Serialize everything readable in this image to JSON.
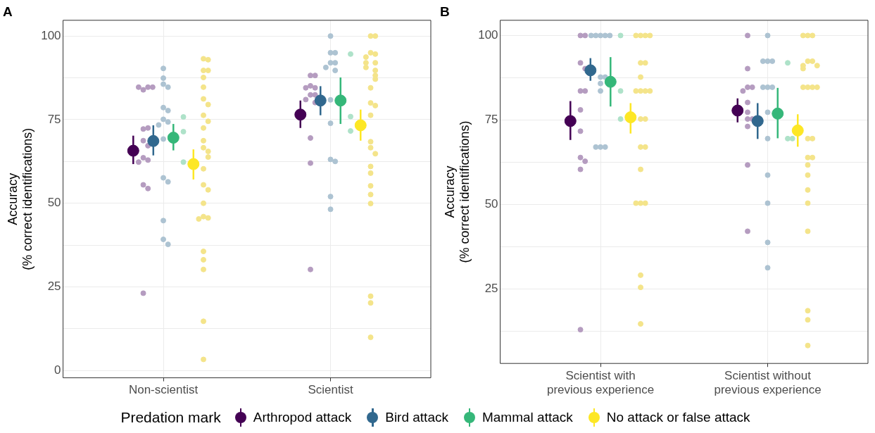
{
  "chart_data": [
    {
      "type": "scatter",
      "title": "A",
      "ylabel": "Accuracy\n(% correct identifications)",
      "categories": [
        "Non-scientist",
        "Scientist"
      ],
      "ylim": [
        -2.2,
        104.7
      ],
      "yticks": [
        0,
        {
          "value": 12.5,
          "label": null
        },
        25,
        {
          "value": 37.5,
          "label": null
        },
        50,
        {
          "value": 62.5,
          "label": null
        },
        75,
        {
          "value": 87.5,
          "label": null
        },
        100
      ],
      "grid": true,
      "marker": "circle",
      "legend": "bottom",
      "legend_title": "Predation mark",
      "series": [
        {
          "name": "Arthropod attack",
          "color": "#440154",
          "values": [
            65.7,
            76.5
          ],
          "errors": [
            [
              61.7,
              70.2
            ],
            [
              72.5,
              80.7
            ]
          ]
        },
        {
          "name": "Bird attack",
          "color": "#31688e",
          "values": [
            68.6,
            80.7
          ],
          "errors": [
            [
              64.3,
              73.3
            ],
            [
              76.3,
              85
            ]
          ]
        },
        {
          "name": "Mammal attack",
          "color": "#35b779",
          "values": [
            69.6,
            80.7
          ],
          "errors": [
            [
              65.8,
              73.7
            ],
            [
              73.7,
              87.6
            ]
          ]
        },
        {
          "name": "No attack or false attack",
          "color": "#fde725",
          "values": [
            61.7,
            73.3
          ],
          "errors": [
            [
              57.1,
              66.1
            ],
            [
              68.7,
              78
            ]
          ]
        },
        {
          "color": "#b59cc0",
          "x": [
            "Non-scientist",
            "Non-scientist",
            "Non-scientist",
            "Non-scientist",
            "Non-scientist",
            "Non-scientist",
            "Non-scientist",
            "Non-scientist",
            "Non-scientist",
            "Non-scientist",
            "Non-scientist",
            "Non-scientist",
            "Non-scientist",
            "Non-scientist",
            "Scientist",
            "Scientist",
            "Scientist",
            "Scientist",
            "Scientist",
            "Scientist",
            "Scientist",
            "Scientist",
            "Scientist",
            "Scientist",
            "Scientist",
            "Scientist"
          ],
          "values": [
            83.9,
            84.7,
            84.7,
            84.7,
            72.2,
            72.5,
            68.7,
            67.2,
            63.6,
            62.9,
            62.3,
            55.5,
            54.4,
            23.1,
            88.2,
            88.2,
            85.1,
            84.5,
            84.5,
            82.4,
            82.4,
            81.0,
            80.1,
            69.5,
            62.0,
            30.2
          ]
        },
        {
          "color": "#adc3d2",
          "x": [
            "Non-scientist",
            "Non-scientist",
            "Non-scientist",
            "Non-scientist",
            "Non-scientist",
            "Non-scientist",
            "Non-scientist",
            "Non-scientist",
            "Non-scientist",
            "Non-scientist",
            "Non-scientist",
            "Non-scientist",
            "Non-scientist",
            "Non-scientist",
            "Non-scientist",
            "Scientist",
            "Scientist",
            "Scientist",
            "Scientist",
            "Scientist",
            "Scientist",
            "Scientist",
            "Scientist",
            "Scientist",
            "Scientist",
            "Scientist",
            "Scientist",
            "Scientist"
          ],
          "values": [
            90.3,
            87.4,
            85.6,
            84.7,
            78.6,
            77.7,
            75.1,
            74.3,
            73.4,
            69.2,
            57.6,
            56.4,
            44.8,
            39.2,
            37.7,
            100,
            95.0,
            95.0,
            92.0,
            92.0,
            90.6,
            89.7,
            80.9,
            73.9,
            63.1,
            62.5,
            52.0,
            48.2
          ]
        },
        {
          "color": "#aee2c9",
          "x": [
            "Non-scientist",
            "Non-scientist",
            "Non-scientist",
            "Scientist",
            "Scientist",
            "Scientist"
          ],
          "values": [
            75.8,
            71.4,
            62.3,
            94.6,
            75.9,
            71.6
          ]
        },
        {
          "color": "#f4e48a",
          "x": [
            "Non-scientist",
            "Non-scientist",
            "Non-scientist",
            "Non-scientist",
            "Non-scientist",
            "Non-scientist",
            "Non-scientist",
            "Non-scientist",
            "Non-scientist",
            "Non-scientist",
            "Non-scientist",
            "Non-scientist",
            "Non-scientist",
            "Non-scientist",
            "Non-scientist",
            "Non-scientist",
            "Non-scientist",
            "Non-scientist",
            "Non-scientist",
            "Non-scientist",
            "Non-scientist",
            "Non-scientist",
            "Non-scientist",
            "Non-scientist",
            "Non-scientist",
            "Non-scientist",
            "Non-scientist",
            "Scientist",
            "Scientist",
            "Scientist",
            "Scientist",
            "Scientist",
            "Scientist",
            "Scientist",
            "Scientist",
            "Scientist",
            "Scientist",
            "Scientist",
            "Scientist",
            "Scientist",
            "Scientist",
            "Scientist",
            "Scientist",
            "Scientist",
            "Scientist",
            "Scientist",
            "Scientist",
            "Scientist",
            "Scientist",
            "Scientist",
            "Scientist",
            "Scientist",
            "Scientist"
          ],
          "values": [
            93.2,
            92.9,
            89.7,
            89.7,
            87.6,
            84.7,
            81.2,
            79.5,
            76.3,
            74.5,
            72.5,
            68.7,
            66.6,
            65.5,
            63.8,
            60.3,
            55.5,
            54.0,
            50.0,
            46.0,
            45.6,
            45.3,
            35.6,
            33.1,
            30.2,
            14.7,
            3.3,
            100,
            100,
            95.0,
            94.6,
            93.7,
            92.0,
            92.0,
            90.6,
            89.7,
            88.2,
            87.1,
            84.5,
            80.0,
            79.2,
            76.3,
            68.4,
            66.6,
            64.8,
            61.0,
            59.0,
            55.2,
            52.6,
            49.9,
            22.2,
            20.2,
            9.9
          ]
        }
      ]
    },
    {
      "type": "scatter",
      "title": "B",
      "ylabel": "Accuracy\n(% correct identifications)",
      "categories": [
        "Scientist with previous experience",
        "Scientist without previous experience"
      ],
      "ylim": [
        3,
        104.5
      ],
      "yticks": [
        {
          "value": 12.5,
          "label": null
        },
        25,
        {
          "value": 37.5,
          "label": null
        },
        50,
        {
          "value": 62.5,
          "label": null
        },
        75,
        {
          "value": 87.5,
          "label": null
        },
        100
      ],
      "grid": true,
      "marker": "circle",
      "series": [
        {
          "color": "#440154",
          "values": [
            74.7,
            77.8
          ],
          "errors": [
            [
              69.1,
              80.6
            ],
            [
              74.3,
              81.4
            ]
          ]
        },
        {
          "color": "#31688e",
          "values": [
            89.7,
            74.7
          ],
          "errors": [
            [
              86.6,
              93.3
            ],
            [
              69.4,
              80
            ]
          ]
        },
        {
          "color": "#35b779",
          "values": [
            86.3,
            76.9
          ],
          "errors": [
            [
              79,
              93.6
            ],
            [
              69.6,
              84.5
            ]
          ]
        },
        {
          "color": "#fde725",
          "values": [
            75.8,
            71.9
          ],
          "errors": [
            [
              71,
              80
            ],
            [
              67.1,
              76.7
            ]
          ]
        },
        {
          "color": "#b59cc0",
          "x": [
            "Scientist with previous experience",
            "Scientist with previous experience",
            "Scientist with previous experience",
            "Scientist with previous experience",
            "Scientist with previous experience",
            "Scientist with previous experience",
            "Scientist with previous experience",
            "Scientist with previous experience",
            "Scientist with previous experience",
            "Scientist with previous experience",
            "Scientist with previous experience",
            "Scientist with previous experience",
            "Scientist without previous experience",
            "Scientist without previous experience",
            "Scientist without previous experience",
            "Scientist without previous experience",
            "Scientist without previous experience",
            "Scientist without previous experience",
            "Scientist without previous experience",
            "Scientist without previous experience",
            "Scientist without previous experience",
            "Scientist without previous experience",
            "Scientist without previous experience",
            "Scientist without previous experience"
          ],
          "values": [
            100,
            100,
            91.9,
            90.2,
            83.6,
            83.6,
            78.0,
            71.7,
            63.9,
            62.8,
            60.4,
            13.0,
            100,
            90.2,
            84.7,
            84.7,
            83.6,
            80.2,
            77.3,
            75.3,
            75.3,
            73.1,
            61.7,
            42.1
          ]
        },
        {
          "color": "#adc3d2",
          "x": [
            "Scientist with previous experience",
            "Scientist with previous experience",
            "Scientist with previous experience",
            "Scientist with previous experience",
            "Scientist with previous experience",
            "Scientist with previous experience",
            "Scientist with previous experience",
            "Scientist with previous experience",
            "Scientist with previous experience",
            "Scientist with previous experience",
            "Scientist with previous experience",
            "Scientist with previous experience",
            "Scientist without previous experience",
            "Scientist without previous experience",
            "Scientist without previous experience",
            "Scientist without previous experience",
            "Scientist without previous experience",
            "Scientist without previous experience",
            "Scientist without previous experience",
            "Scientist without previous experience",
            "Scientist without previous experience",
            "Scientist without previous experience",
            "Scientist without previous experience",
            "Scientist without previous experience",
            "Scientist without previous experience"
          ],
          "values": [
            100,
            100,
            100,
            100,
            100,
            87.7,
            87.7,
            85.8,
            83.6,
            67.0,
            67.0,
            67.0,
            100,
            92.4,
            92.4,
            92.4,
            84.7,
            84.7,
            84.7,
            77.3,
            69.5,
            58.7,
            50.4,
            38.8,
            31.3
          ]
        },
        {
          "color": "#aee2c9",
          "x": [
            "Scientist with previous experience",
            "Scientist with previous experience",
            "Scientist with previous experience",
            "Scientist without previous experience",
            "Scientist without previous experience",
            "Scientist without previous experience"
          ],
          "values": [
            100,
            83.6,
            75.3,
            91.9,
            69.5,
            69.5
          ]
        },
        {
          "color": "#f4e48a",
          "x": [
            "Scientist with previous experience",
            "Scientist with previous experience",
            "Scientist with previous experience",
            "Scientist with previous experience",
            "Scientist with previous experience",
            "Scientist with previous experience",
            "Scientist with previous experience",
            "Scientist with previous experience",
            "Scientist with previous experience",
            "Scientist with previous experience",
            "Scientist with previous experience",
            "Scientist with previous experience",
            "Scientist with previous experience",
            "Scientist with previous experience",
            "Scientist with previous experience",
            "Scientist with previous experience",
            "Scientist with previous experience",
            "Scientist with previous experience",
            "Scientist with previous experience",
            "Scientist with previous experience",
            "Scientist with previous experience",
            "Scientist with previous experience",
            "Scientist without previous experience",
            "Scientist without previous experience",
            "Scientist without previous experience",
            "Scientist without previous experience",
            "Scientist without previous experience",
            "Scientist without previous experience",
            "Scientist without previous experience",
            "Scientist without previous experience",
            "Scientist without previous experience",
            "Scientist without previous experience",
            "Scientist without previous experience",
            "Scientist without previous experience",
            "Scientist without previous experience",
            "Scientist without previous experience",
            "Scientist without previous experience",
            "Scientist without previous experience",
            "Scientist without previous experience",
            "Scientist without previous experience",
            "Scientist without previous experience",
            "Scientist without previous experience",
            "Scientist without previous experience",
            "Scientist without previous experience",
            "Scientist without previous experience",
            "Scientist without previous experience"
          ],
          "values": [
            100,
            100,
            100,
            100,
            91.9,
            91.9,
            87.7,
            83.6,
            83.6,
            83.6,
            83.6,
            75.3,
            75.3,
            67.0,
            67.0,
            60.4,
            50.4,
            50.4,
            50.4,
            29.1,
            25.5,
            14.7,
            100,
            100,
            100,
            92.4,
            92.4,
            91.1,
            91.1,
            90.2,
            84.7,
            84.7,
            84.7,
            84.7,
            69.5,
            69.5,
            63.9,
            63.9,
            61.7,
            58.7,
            54.3,
            50.4,
            42.1,
            18.6,
            15.9,
            8.3
          ]
        }
      ]
    }
  ]
}
